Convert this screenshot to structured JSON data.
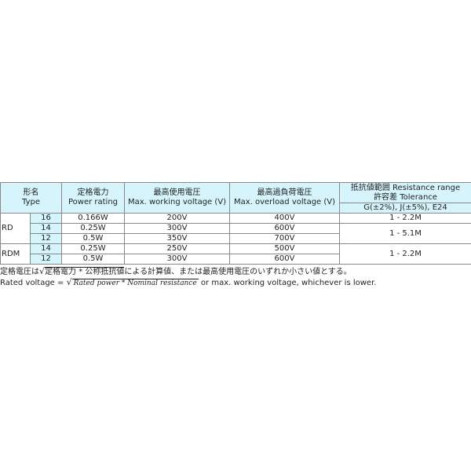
{
  "header": {
    "type_jp": "形名",
    "type_en": "Type",
    "power_jp": "定格電力",
    "power_en": "Power rating",
    "working_jp": "最高使用電圧",
    "working_en": "Max. working voltage (V)",
    "overload_jp": "最高過負荷電圧",
    "overload_en": "Max. overload voltage (V)",
    "range_line1": "抵抗値範囲 Resistance range",
    "range_line2": "許容差 Tolerance",
    "tolerance": "G(±2%), J(±5%), E24"
  },
  "groups": [
    {
      "type": "RD",
      "rows": [
        {
          "size": "16",
          "power": "0.166W",
          "working": "200V",
          "overload": "400V"
        },
        {
          "size": "14",
          "power": "0.25W",
          "working": "300V",
          "overload": "600V"
        },
        {
          "size": "12",
          "power": "0.5W",
          "working": "350V",
          "overload": "700V"
        }
      ]
    },
    {
      "type": "RDM",
      "rows": [
        {
          "size": "14",
          "power": "0.25W",
          "working": "250V",
          "overload": "500V"
        },
        {
          "size": "12",
          "power": "0.5W",
          "working": "300V",
          "overload": "600V"
        }
      ]
    }
  ],
  "ranges": [
    "1 - 2.2M",
    "1 - 5.1M",
    "1 - 2.2M"
  ],
  "notes": {
    "jp_prefix": "定格電圧は",
    "jp_formula": "定格電力 * 公称抵抗値",
    "jp_suffix": "による計算値、または最高使用電圧のいずれか小さい値とする。",
    "en_prefix": "Rated voltage = ",
    "en_formula": "Rated power  * Nominal resistance",
    "en_suffix": " or max. working voltage, whichever is lower."
  }
}
